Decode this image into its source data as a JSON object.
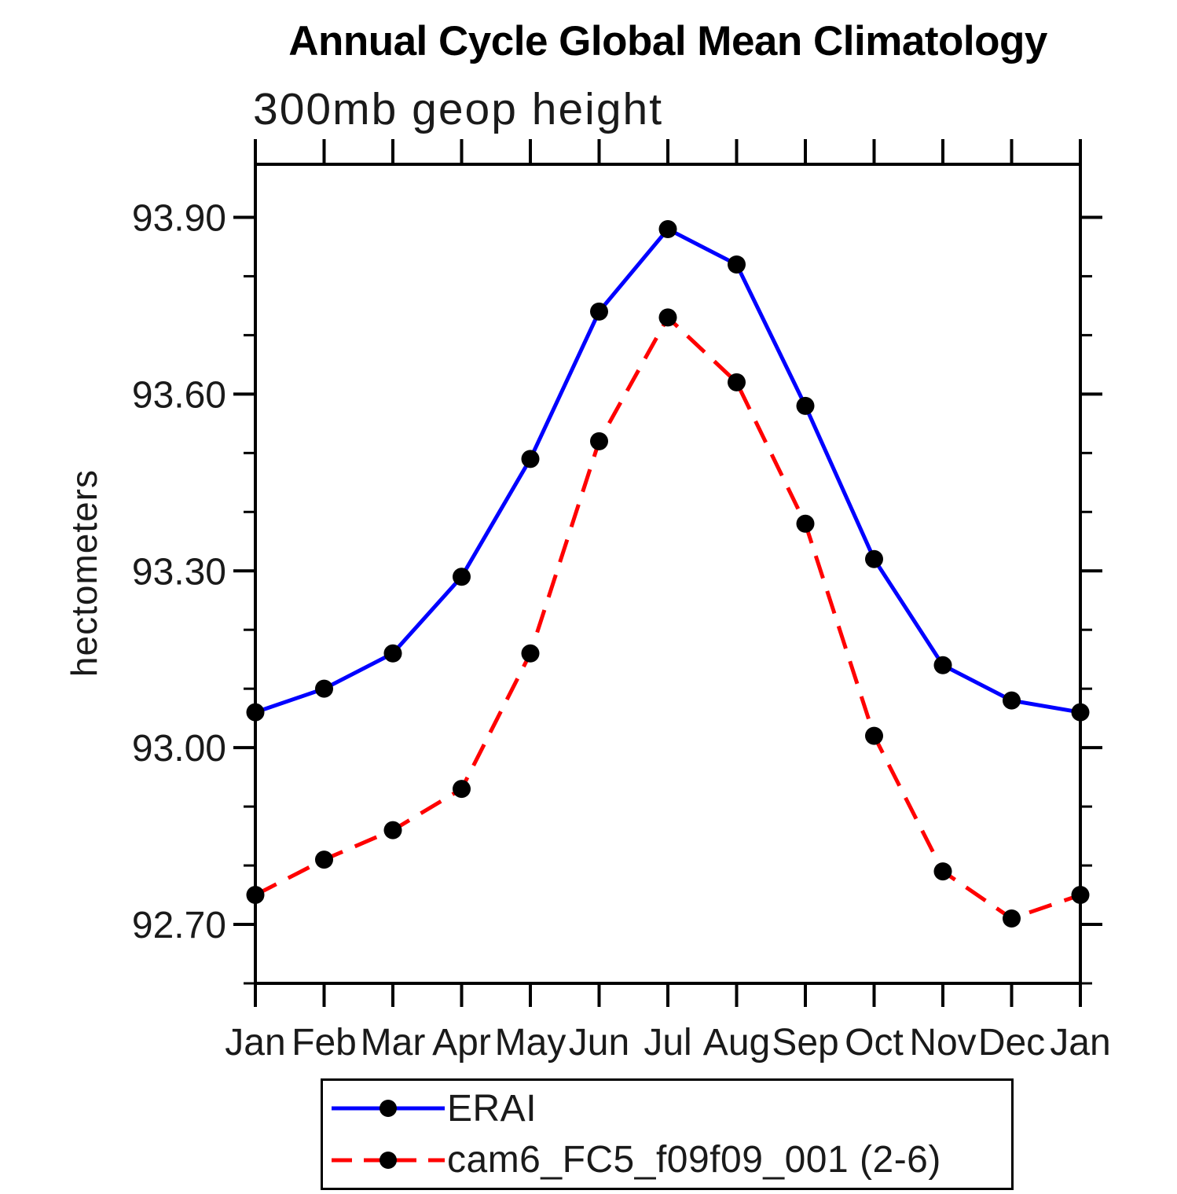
{
  "page": {
    "background": "#ffffff"
  },
  "chart": {
    "title": "Annual Cycle Global Mean Climatology",
    "subtitle": "300mb geop height",
    "ylabel": "hectometers"
  },
  "legend": {
    "items": [
      {
        "label": "ERAI",
        "color": "#0000ff",
        "dash": "",
        "marker": "black-dot"
      },
      {
        "label": "cam6_FC5_f09f09_001 (2-6)",
        "color": "#ff0000",
        "dash": "26 15",
        "marker": "black-dot"
      }
    ]
  },
  "chart_data": {
    "type": "line",
    "title": "Annual Cycle Global Mean Climatology",
    "subtitle": "300mb geop height",
    "xlabel": "",
    "ylabel": "hectometers",
    "categories": [
      "Jan",
      "Feb",
      "Mar",
      "Apr",
      "May",
      "Jun",
      "Jul",
      "Aug",
      "Sep",
      "Oct",
      "Nov",
      "Dec",
      "Jan"
    ],
    "series": [
      {
        "name": "ERAI",
        "color": "#0000ff",
        "line_style": "solid",
        "marker": "filled-circle",
        "marker_color": "#000000",
        "values": [
          93.06,
          93.1,
          93.16,
          93.29,
          93.49,
          93.74,
          93.88,
          93.82,
          93.58,
          93.32,
          93.14,
          93.08,
          93.06
        ]
      },
      {
        "name": "cam6_FC5_f09f09_001 (2-6)",
        "color": "#ff0000",
        "line_style": "dashed",
        "marker": "filled-circle",
        "marker_color": "#000000",
        "values": [
          92.75,
          92.81,
          92.86,
          92.93,
          93.16,
          93.52,
          93.73,
          93.62,
          93.38,
          93.02,
          92.79,
          92.71,
          92.75
        ]
      }
    ],
    "yaxis": {
      "unit": "hectometers",
      "ylim": [
        92.6,
        93.99
      ],
      "major_ticks": [
        93.9,
        93.6,
        93.3,
        93.0,
        92.7
      ],
      "minor_tick_step": 0.1,
      "tick_label_decimals": 2
    },
    "xaxis": {
      "tick_labels": [
        "Jan",
        "Feb",
        "Mar",
        "Apr",
        "May",
        "Jun",
        "Jul",
        "Aug",
        "Sep",
        "Oct",
        "Nov",
        "Dec",
        "Jan"
      ]
    },
    "grid": false,
    "legend_position": "bottom-center"
  }
}
